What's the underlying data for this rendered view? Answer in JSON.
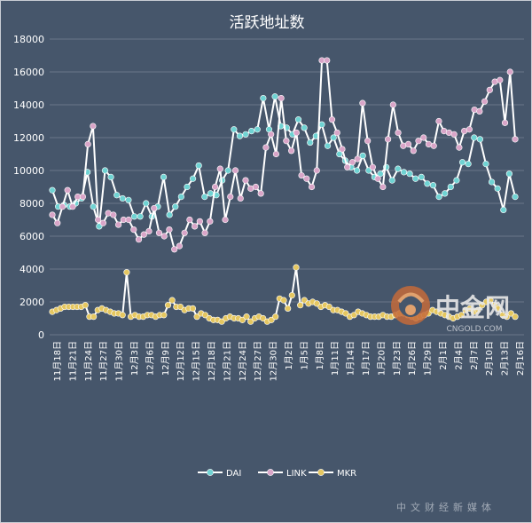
{
  "chart_data": {
    "type": "line",
    "title": "活跃地址数",
    "xlabel": "",
    "ylabel": "",
    "ylim": [
      0,
      18000
    ],
    "yticks": [
      0,
      2000,
      4000,
      6000,
      8000,
      10000,
      12000,
      14000,
      16000,
      18000
    ],
    "grid": true,
    "legend_position": "bottom",
    "x_tick_labels": [
      "11月18日",
      "11月21日",
      "11月24日",
      "11月27日",
      "11月30日",
      "12月3日",
      "12月6日",
      "12月9日",
      "12月12日",
      "12月15日",
      "12月18日",
      "12月21日",
      "12月24日",
      "12月27日",
      "12月30日",
      "1月2日",
      "1月5日",
      "1月8日",
      "1月11日",
      "1月14日",
      "1月17日",
      "1月20日",
      "1月23日",
      "1月26日",
      "1月29日",
      "2月1日",
      "2月4日",
      "2月7日",
      "2月10日",
      "2月13日",
      "2月16日"
    ],
    "series": [
      {
        "name": "DAI",
        "color": "#6fd3d3",
        "values": [
          8800,
          7800,
          7900,
          7800,
          8000,
          8300,
          9900,
          7800,
          6600,
          10000,
          9600,
          8500,
          8300,
          8200,
          7200,
          7200,
          8000,
          7200,
          7800,
          9600,
          7300,
          7800,
          8400,
          9000,
          9500,
          10300,
          8400,
          8600,
          8500,
          9400,
          10000,
          12500,
          12100,
          12200,
          12400,
          12500,
          14400,
          12500,
          14500,
          12700,
          12600,
          12200,
          13100,
          12600,
          11700,
          12100,
          12800,
          11500,
          12000,
          11000,
          10600,
          10200,
          10000,
          10900,
          10000,
          9600,
          9800,
          10200,
          9400,
          10100,
          9900,
          9800,
          9500,
          9600,
          9200,
          9100,
          8400,
          8600,
          9000,
          9400,
          10500,
          10400,
          12000,
          11900,
          10400,
          9300,
          8900,
          7600,
          9800,
          8400
        ]
      },
      {
        "name": "LINK",
        "color": "#d9a5c8",
        "values": [
          7300,
          6800,
          7800,
          8800,
          7800,
          8400,
          8400,
          11600,
          12700,
          7000,
          6800,
          7400,
          7300,
          6700,
          7000,
          7000,
          6400,
          5800,
          6100,
          6300,
          7700,
          6200,
          6000,
          6400,
          5200,
          5400,
          6200,
          7000,
          6600,
          6900,
          6200,
          6900,
          9000,
          10100,
          7000,
          8400,
          10000,
          8300,
          9400,
          8900,
          9000,
          8600,
          11400,
          12200,
          11000,
          14400,
          11800,
          11200,
          12300,
          9700,
          9500,
          9000,
          10000,
          16700,
          16700,
          13100,
          12300,
          11300,
          10200,
          10500,
          10700,
          14100,
          11800,
          10200,
          9500,
          9000,
          11900,
          14000,
          12300,
          11500,
          11600,
          11200,
          11800,
          12000,
          11600,
          11500,
          13000,
          12400,
          12300,
          12200,
          11400,
          12400,
          12500,
          13700,
          13600,
          14200,
          14900,
          15400,
          15500,
          12900,
          16000,
          11900
        ]
      },
      {
        "name": "MKR",
        "color": "#e5c761",
        "values": [
          1400,
          1500,
          1600,
          1700,
          1700,
          1700,
          1700,
          1700,
          1800,
          1100,
          1100,
          1500,
          1600,
          1500,
          1400,
          1300,
          1300,
          1200,
          3800,
          1100,
          1200,
          1100,
          1100,
          1200,
          1200,
          1100,
          1200,
          1200,
          1800,
          2100,
          1700,
          1700,
          1500,
          1600,
          1600,
          1100,
          1300,
          1200,
          1000,
          900,
          900,
          800,
          1000,
          1100,
          1000,
          1000,
          900,
          1100,
          800,
          1000,
          1100,
          1000,
          800,
          900,
          1100,
          2200,
          2100,
          1600,
          2400,
          4100,
          1800,
          2100,
          1900,
          2000,
          1900,
          1700,
          1800,
          1700,
          1500,
          1500,
          1400,
          1300,
          1100,
          1200,
          1400,
          1300,
          1200,
          1100,
          1100,
          1100,
          1200,
          1100,
          1100,
          1200,
          1300,
          1300,
          1200,
          1100,
          1000,
          1100,
          1200,
          1300,
          1500,
          1400,
          1300,
          1200,
          1100,
          1000,
          1100,
          1200,
          1500,
          1600,
          1400,
          1500,
          1800,
          2000,
          2100,
          1800,
          1600,
          1200,
          1100,
          1300,
          1100
        ]
      }
    ],
    "watermark": {
      "brand": "中金网",
      "domain": "CNGOLD.COM",
      "tagline": "中文财经新媒体"
    }
  }
}
